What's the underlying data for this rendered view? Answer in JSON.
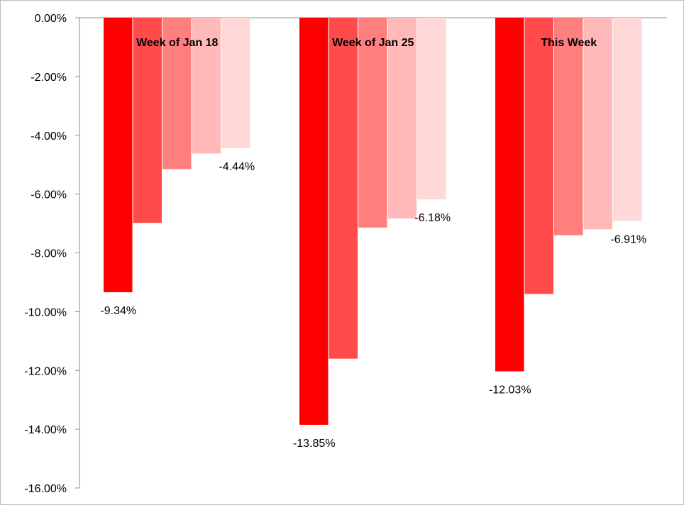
{
  "chart_data": {
    "type": "bar",
    "title": "",
    "xlabel": "",
    "ylabel": "",
    "ylim": [
      -16,
      0
    ],
    "y_ticks": [
      0,
      -2,
      -4,
      -6,
      -8,
      -10,
      -12,
      -14,
      -16
    ],
    "y_tick_labels": [
      "0.00%",
      "-2.00%",
      "-4.00%",
      "-6.00%",
      "-8.00%",
      "-10.00%",
      "-12.00%",
      "-14.00%",
      "-16.00%"
    ],
    "grid": false,
    "legend": "none",
    "categories": [
      "Week of Jan 18",
      "Week of Jan 25",
      "This Week"
    ],
    "series_colors": [
      "#ff0000",
      "#ff4b4b",
      "#ff7f7f",
      "#ffb9b9",
      "#ffd8d8"
    ],
    "series": [
      {
        "values": [
          -9.34,
          -13.85,
          -12.03
        ]
      },
      {
        "values": [
          -6.98,
          -11.6,
          -9.4
        ]
      },
      {
        "values": [
          -5.15,
          -7.14,
          -7.4
        ]
      },
      {
        "values": [
          -4.62,
          -6.83,
          -7.2
        ]
      },
      {
        "values": [
          -4.44,
          -6.18,
          -6.91
        ]
      }
    ],
    "data_labels": {
      "first_series": [
        "-9.34%",
        "-13.85%",
        "-12.03%"
      ],
      "last_series": [
        "-4.44%",
        "-6.18%",
        "-6.91%"
      ]
    }
  }
}
